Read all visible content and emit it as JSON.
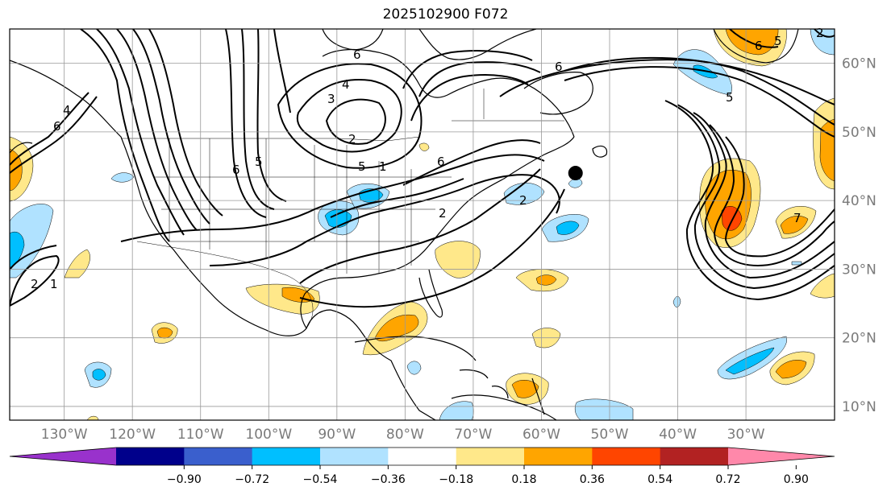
{
  "title": "2025102900 F072",
  "map": {
    "lon_range": [
      -138,
      -17
    ],
    "lat_range": [
      8,
      65
    ],
    "grid": true,
    "lon_ticks": [
      {
        "lon": -130,
        "label": "130°W"
      },
      {
        "lon": -120,
        "label": "120°W"
      },
      {
        "lon": -110,
        "label": "110°W"
      },
      {
        "lon": -100,
        "label": "100°W"
      },
      {
        "lon": -90,
        "label": "90°W"
      },
      {
        "lon": -80,
        "label": "80°W"
      },
      {
        "lon": -70,
        "label": "70°W"
      },
      {
        "lon": -60,
        "label": "60°W"
      },
      {
        "lon": -50,
        "label": "50°W"
      },
      {
        "lon": -40,
        "label": "40°W"
      },
      {
        "lon": -30,
        "label": "30°W"
      }
    ],
    "lat_ticks": [
      {
        "lat": 10,
        "label": "10°N"
      },
      {
        "lat": 20,
        "label": "20°N"
      },
      {
        "lat": 30,
        "label": "30°N"
      },
      {
        "lat": 40,
        "label": "40°N"
      },
      {
        "lat": 50,
        "label": "50°N"
      },
      {
        "lat": 60,
        "label": "60°N"
      }
    ],
    "marker": {
      "lon": -55,
      "lat": 44
    }
  },
  "colorbar": {
    "ticks": [
      "−0.90",
      "−0.72",
      "−0.54",
      "−0.36",
      "−0.18",
      "0.18",
      "0.36",
      "0.54",
      "0.72",
      "0.90"
    ],
    "colors": [
      "#9932cc",
      "#00008b",
      "#3a5fcd",
      "#00bfff",
      "#b0e2ff",
      "#ffffff",
      "#ffe88a",
      "#ffa500",
      "#ff4500",
      "#b22222",
      "#ff88aa"
    ]
  },
  "contour_labels": [
    "2",
    "1",
    "6",
    "4",
    "6",
    "5",
    "4",
    "3",
    "2",
    "6",
    "6",
    "5",
    "2",
    "5",
    "2",
    "6",
    "5",
    "6",
    "7",
    "2",
    "1"
  ]
}
